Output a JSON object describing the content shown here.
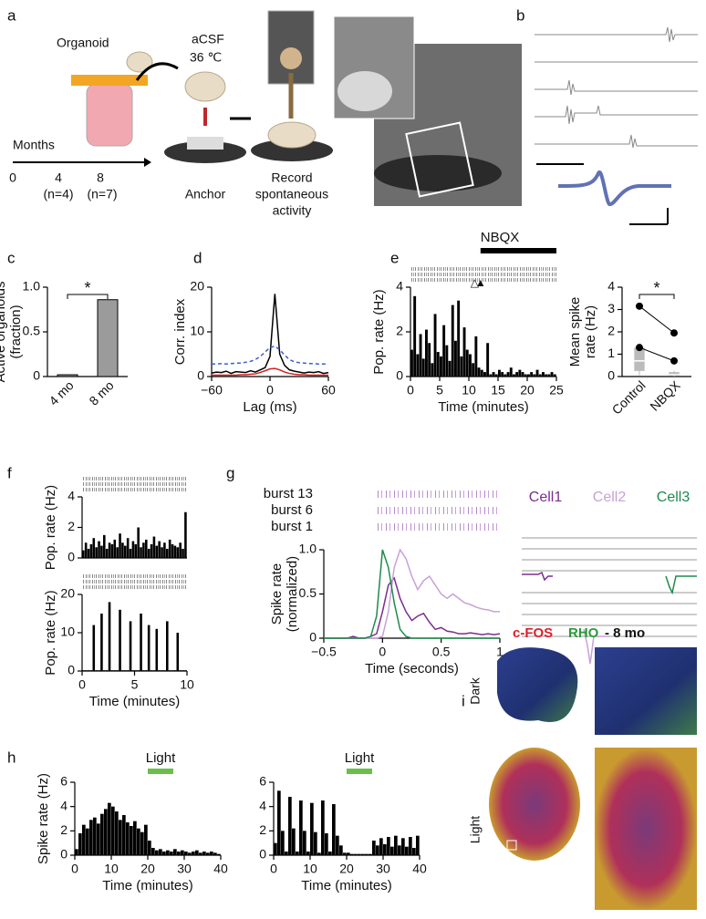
{
  "figure": {
    "a": {
      "letter": "a",
      "organoid": "Organoid",
      "acsf": "aCSF",
      "temp": "36 ℃",
      "months": "Months",
      "ticks": [
        "0",
        "4",
        "8"
      ],
      "n": [
        "(n=4)",
        "(n=7)"
      ],
      "anchor": "Anchor",
      "record": [
        "Record",
        "spontaneous",
        "activity"
      ]
    },
    "b": {
      "letter": "b"
    },
    "i": {
      "letter": "i",
      "stain": [
        "c-FOS",
        "RHO",
        "- 8 mo"
      ],
      "rows": [
        "Dark",
        "Light"
      ]
    }
  },
  "chart_data": [
    {
      "type": "bar",
      "panel": "c",
      "y_label": [
        "Active organoids",
        "(fraction)"
      ],
      "categories": [
        "4 mo",
        "8 mo"
      ],
      "values": [
        0.02,
        0.86
      ],
      "color": "#9b9b9b",
      "ylim": [
        0,
        1
      ],
      "yticks": [
        0,
        0.5,
        {
          "value": 1,
          "label": "1.0"
        }
      ],
      "significance": "*"
    },
    {
      "type": "line",
      "panel": "d",
      "x_label": "Lag (ms)",
      "y_label": [
        "Corr. index"
      ],
      "x": [
        -60,
        -55,
        -50,
        -45,
        -40,
        -35,
        -30,
        -25,
        -20,
        -15,
        -10,
        -5,
        0,
        5,
        10,
        15,
        20,
        25,
        30,
        35,
        40,
        45,
        50,
        55,
        60
      ],
      "series": [
        {
          "color": "#000000",
          "style": "solid",
          "values": [
            0.8,
            1.0,
            0.9,
            1.2,
            0.7,
            1.1,
            1.0,
            0.9,
            1.3,
            1.0,
            1.5,
            2.0,
            4.5,
            18.5,
            5.0,
            2.5,
            1.5,
            1.2,
            1.0,
            0.8,
            1.0,
            0.9,
            1.1,
            0.7,
            0.9
          ]
        },
        {
          "color": "#3a5fcd",
          "style": "dashed",
          "values": [
            2.8,
            2.8,
            2.9,
            2.8,
            2.9,
            3.0,
            3.0,
            3.2,
            3.4,
            3.8,
            4.5,
            5.5,
            6.5,
            6.8,
            6.0,
            4.8,
            3.8,
            3.3,
            3.1,
            3.0,
            2.9,
            2.9,
            2.8,
            2.8,
            2.8
          ]
        },
        {
          "color": "#d42020",
          "style": "solid",
          "values": [
            0.3,
            0.3,
            0.3,
            0.3,
            0.3,
            0.3,
            0.4,
            0.4,
            0.5,
            0.6,
            0.9,
            1.3,
            1.7,
            1.8,
            1.5,
            1.0,
            0.7,
            0.5,
            0.4,
            0.4,
            0.3,
            0.3,
            0.3,
            0.3,
            0.3
          ]
        }
      ],
      "xlim": [
        -60,
        60
      ],
      "xticks": [
        {
          "value": -60,
          "label": "−60"
        },
        0,
        60
      ],
      "ylim": [
        0,
        20
      ],
      "yticks": [
        0,
        10,
        20
      ]
    },
    {
      "type": "histogram",
      "panel": "e",
      "x_label": "Time (minutes)",
      "y_label": [
        "Pop. rate (Hz)"
      ],
      "color": "#000000",
      "raster": true,
      "bins": [
        0,
        0.5,
        1,
        1.5,
        2,
        2.5,
        3,
        3.5,
        4,
        4.5,
        5,
        5.5,
        6,
        6.5,
        7,
        7.5,
        8,
        8.5,
        9,
        9.5,
        10,
        10.5,
        11,
        11.5,
        12,
        12.5,
        13,
        13.5,
        14,
        14.5,
        15,
        15.5,
        16,
        16.5,
        17,
        17.5,
        18,
        18.5,
        19,
        19.5,
        20,
        20.5,
        21,
        21.5,
        22,
        22.5,
        23,
        23.5,
        24,
        24.5,
        25
      ],
      "values": [
        1.2,
        3.6,
        1.0,
        1.9,
        0.8,
        2.1,
        1.5,
        0.6,
        2.8,
        1.1,
        0.9,
        2.3,
        1.4,
        0.7,
        3.2,
        1.6,
        3.4,
        0.9,
        2.2,
        1.2,
        1.0,
        0.6,
        1.8,
        0.4,
        0.3,
        0.2,
        1.5,
        0.1,
        0.2,
        0.1,
        0.3,
        0.2,
        0.1,
        0.2,
        0.4,
        0.1,
        0.2,
        0.3,
        0.2,
        0.1,
        0.1,
        0.2,
        0.1,
        0.3,
        0.1,
        0.2,
        0.1,
        0.1,
        0.2,
        0.1
      ],
      "xlim": [
        0,
        25
      ],
      "xticks": [
        0,
        5,
        10,
        15,
        20,
        25
      ],
      "ylim": [
        0,
        4
      ],
      "yticks": [
        0,
        2,
        4
      ],
      "annotations": [
        {
          "text": "NBQX",
          "x": [
            12,
            25
          ]
        },
        {
          "text": "△",
          "x": 11
        },
        {
          "text": "▲",
          "x": 12
        }
      ]
    },
    {
      "type": "paired",
      "y_label": [
        "Mean spike",
        "rate (Hz)"
      ],
      "categories": [
        "Control",
        "NBQX"
      ],
      "box": [
        {
          "min": 0.05,
          "q1": 0.25,
          "median": 0.7,
          "q3": 1.3,
          "max": 1.4
        },
        {
          "min": 0,
          "q1": 0.02,
          "median": 0.08,
          "q3": 0.2,
          "max": 0.25
        }
      ],
      "series": [
        {
          "values": [
            3.15,
            1.95
          ]
        },
        {
          "values": [
            1.3,
            0.7
          ]
        }
      ],
      "color": "#bbbbbb",
      "ylim": [
        0,
        4
      ],
      "yticks": [
        0,
        1,
        2,
        3,
        4
      ],
      "significance": "*"
    },
    {
      "type": "histogram",
      "panel": "f",
      "y_label": [
        "Pop. rate (Hz)"
      ],
      "color": "#000000",
      "raster": true,
      "bins": [
        0,
        0.25,
        0.5,
        0.75,
        1,
        1.25,
        1.5,
        1.75,
        2,
        2.25,
        2.5,
        2.75,
        3,
        3.25,
        3.5,
        3.75,
        4,
        4.25,
        4.5,
        4.75,
        5,
        5.25,
        5.5,
        5.75,
        6,
        6.25,
        6.5,
        6.75,
        7,
        7.25,
        7.5,
        7.75,
        8,
        8.25,
        8.5,
        8.75,
        9,
        9.25,
        9.5,
        9.75,
        10
      ],
      "values": [
        0.5,
        1.0,
        0.6,
        0.9,
        1.3,
        0.7,
        1.1,
        0.8,
        1.5,
        0.6,
        1.0,
        0.9,
        1.2,
        0.7,
        1.6,
        1.0,
        0.8,
        1.3,
        0.6,
        1.1,
        0.9,
        2.0,
        0.7,
        1.0,
        1.2,
        0.6,
        0.9,
        1.4,
        0.8,
        1.1,
        0.7,
        1.0,
        0.6,
        1.2,
        0.9,
        0.8,
        0.7,
        1.0,
        0.6,
        3.0
      ],
      "xlim": [
        0,
        10
      ],
      "ylim": [
        0,
        4
      ],
      "yticks": [
        0,
        2,
        4
      ]
    },
    {
      "type": "histogram",
      "x_label": "Time (minutes)",
      "y_label": [
        "Pop. rate (Hz)"
      ],
      "color": "#000000",
      "raster": true,
      "bins": [
        0,
        0.25,
        0.5,
        0.75,
        1,
        1.25,
        1.5,
        1.75,
        2,
        2.25,
        2.5,
        2.75,
        3,
        3.25,
        3.5,
        3.75,
        4,
        4.25,
        4.5,
        4.75,
        5,
        5.25,
        5.5,
        5.75,
        6,
        6.25,
        6.5,
        6.75,
        7,
        7.25,
        7.5,
        7.75,
        8,
        8.25,
        8.5,
        8.75,
        9,
        9.25,
        9.5,
        9.75,
        10
      ],
      "values": [
        0.2,
        0.2,
        0.2,
        0.2,
        12,
        0.2,
        0.2,
        15,
        0.2,
        0.2,
        18,
        0.2,
        0.2,
        0.2,
        16,
        0.2,
        0.2,
        0.2,
        13,
        0.2,
        0.2,
        0.2,
        15,
        0.2,
        0.2,
        12,
        0.2,
        0.2,
        11,
        0.2,
        0.2,
        0.2,
        13,
        0.2,
        0.2,
        0.2,
        10,
        0.2,
        0.2,
        0.2
      ],
      "xlim": [
        0,
        10
      ],
      "xticks": [
        0,
        5,
        10
      ],
      "ylim": [
        0,
        20
      ],
      "yticks": [
        0,
        10,
        20
      ]
    },
    {
      "type": "line",
      "panel": "g",
      "x_label": "Time (seconds)",
      "y_label": [
        "Spike rate",
        "(normalized)"
      ],
      "raster_labels": [
        "burst 13",
        "burst 6",
        "burst 1"
      ],
      "x": [
        -0.5,
        -0.45,
        -0.4,
        -0.35,
        -0.3,
        -0.25,
        -0.2,
        -0.15,
        -0.1,
        -0.05,
        0,
        0.05,
        0.1,
        0.15,
        0.2,
        0.25,
        0.3,
        0.35,
        0.4,
        0.45,
        0.5,
        0.55,
        0.6,
        0.65,
        0.7,
        0.75,
        0.8,
        0.85,
        0.9,
        0.95,
        1
      ],
      "series": [
        {
          "name": "Cell1",
          "color": "#7b2d8e",
          "style": "solid",
          "values": [
            0,
            0,
            0,
            0,
            0,
            0.02,
            0,
            0,
            0.02,
            0.05,
            0.3,
            0.6,
            0.68,
            0.45,
            0.3,
            0.2,
            0.25,
            0.28,
            0.18,
            0.1,
            0.12,
            0.08,
            0.07,
            0.05,
            0.05,
            0.06,
            0.05,
            0.04,
            0.05,
            0.04,
            0.05
          ]
        },
        {
          "name": "Cell2",
          "color": "#c9a0d8",
          "style": "solid",
          "values": [
            0,
            0,
            0,
            0,
            0,
            0,
            0,
            0,
            0,
            0,
            0.02,
            0.3,
            0.8,
            1.0,
            0.9,
            0.7,
            0.55,
            0.65,
            0.7,
            0.6,
            0.5,
            0.45,
            0.5,
            0.45,
            0.4,
            0.38,
            0.35,
            0.33,
            0.32,
            0.3,
            0.3
          ]
        },
        {
          "name": "Cell3",
          "color": "#1f8a4c",
          "style": "solid",
          "values": [
            0,
            0,
            0,
            0,
            0,
            0,
            0,
            0,
            0.02,
            0.25,
            1.0,
            0.8,
            0.4,
            0.1,
            0.02,
            0,
            0,
            0,
            0,
            0,
            0,
            0,
            0,
            0,
            0,
            0,
            0,
            0,
            0,
            0,
            0
          ]
        }
      ],
      "xlim": [
        -0.5,
        1
      ],
      "xticks": [
        {
          "value": -0.5,
          "label": "−0.5"
        },
        0,
        0.5,
        1
      ],
      "ylim": [
        0,
        1
      ],
      "yticks": [
        0,
        0.5,
        {
          "value": 1,
          "label": "1.0"
        }
      ]
    },
    {
      "type": "histogram",
      "panel": "h",
      "x_label": "Time (minutes)",
      "y_label": [
        "Spike rate (Hz)"
      ],
      "color": "#000000",
      "bins": [
        0,
        1,
        2,
        3,
        4,
        5,
        6,
        7,
        8,
        9,
        10,
        11,
        12,
        13,
        14,
        15,
        16,
        17,
        18,
        19,
        20,
        21,
        22,
        23,
        24,
        25,
        26,
        27,
        28,
        29,
        30,
        31,
        32,
        33,
        34,
        35,
        36,
        37,
        38,
        39,
        40
      ],
      "values": [
        0.5,
        1.8,
        2.5,
        2.2,
        2.9,
        3.1,
        2.6,
        3.4,
        3.8,
        4.3,
        4.0,
        3.6,
        2.9,
        3.3,
        2.7,
        2.4,
        2.8,
        2.2,
        1.9,
        2.5,
        1.2,
        0.6,
        0.4,
        0.5,
        0.3,
        0.4,
        0.3,
        0.5,
        0.3,
        0.4,
        0.3,
        0.2,
        0.3,
        0.4,
        0.2,
        0.3,
        0.2,
        0.3,
        0.2,
        0.1
      ],
      "xlim": [
        0,
        40
      ],
      "xticks": [
        0,
        10,
        20,
        30,
        40
      ],
      "ylim": [
        0,
        6
      ],
      "yticks": [
        0,
        2,
        4,
        6
      ],
      "annotations": [
        {
          "text": "Light",
          "x": [
            20,
            27
          ],
          "color": "#6abf4b"
        }
      ]
    },
    {
      "type": "histogram",
      "x_label": "Time (minutes)",
      "color": "#000000",
      "bins": [
        0,
        1,
        2,
        3,
        4,
        5,
        6,
        7,
        8,
        9,
        10,
        11,
        12,
        13,
        14,
        15,
        16,
        17,
        18,
        19,
        20,
        21,
        22,
        23,
        24,
        25,
        26,
        27,
        28,
        29,
        30,
        31,
        32,
        33,
        34,
        35,
        36,
        37,
        38,
        39,
        40
      ],
      "values": [
        1.0,
        5.3,
        2.0,
        0.3,
        4.8,
        2.2,
        0.3,
        4.5,
        2.0,
        0.3,
        4.3,
        1.9,
        0.2,
        4.5,
        1.8,
        0.3,
        4.2,
        1.6,
        0.8,
        0.2,
        0.2,
        0.1,
        0.1,
        0.1,
        0.1,
        0.1,
        0.1,
        1.2,
        0.8,
        1.4,
        0.9,
        1.5,
        0.7,
        1.6,
        0.8,
        1.4,
        0.7,
        1.5,
        0.6,
        1.6
      ],
      "xlim": [
        0,
        40
      ],
      "xticks": [
        0,
        10,
        20,
        30,
        40
      ],
      "ylim": [
        0,
        6
      ],
      "yticks": [
        0,
        2,
        4,
        6
      ],
      "annotations": [
        {
          "text": "Light",
          "x": [
            20,
            27
          ],
          "color": "#6abf4b"
        }
      ]
    }
  ]
}
